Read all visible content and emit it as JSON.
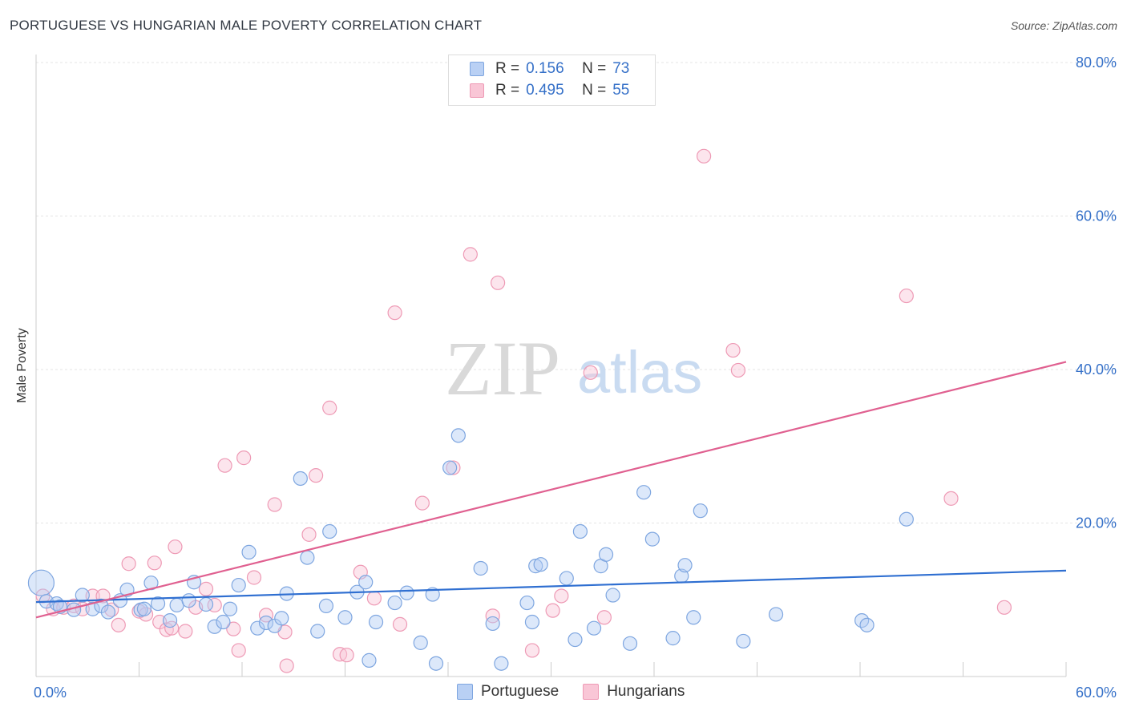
{
  "title": "PORTUGUESE VS HUNGARIAN MALE POVERTY CORRELATION CHART",
  "source": "Source: ZipAtlas.com",
  "watermark": {
    "zip": "ZIP",
    "atlas": "atlas"
  },
  "legend_top": [
    {
      "r_label": "R =",
      "r_value": "0.156",
      "n_label": "N =",
      "n_value": "73"
    },
    {
      "r_label": "R =",
      "r_value": "0.495",
      "n_label": "N =",
      "n_value": "55"
    }
  ],
  "legend_bottom": [
    "Portuguese",
    "Hungarians"
  ],
  "colors": {
    "portuguese": "#3b78d8",
    "hungarians": "#e46d98",
    "axis_text": "#3570c8"
  },
  "chart_data": {
    "type": "scatter",
    "title": "PORTUGUESE VS HUNGARIAN MALE POVERTY CORRELATION CHART",
    "xlabel": "",
    "ylabel": "Male Poverty",
    "xlim": [
      0,
      60
    ],
    "ylim": [
      0,
      80
    ],
    "x_tick_labels": [
      "0.0%",
      "60.0%"
    ],
    "y_tick_labels": [
      "20.0%",
      "40.0%",
      "60.0%",
      "80.0%"
    ],
    "y_ticks": [
      20,
      40,
      60,
      80
    ],
    "grid": true,
    "legend": "top-center",
    "series": [
      {
        "name": "Portuguese",
        "color": "#3b78d8",
        "trend": [
          [
            0,
            9.7
          ],
          [
            60,
            13.8
          ]
        ],
        "points": [
          [
            0.3,
            12.2
          ],
          [
            0.6,
            9.8
          ],
          [
            1.2,
            9.5
          ],
          [
            1.4,
            9.1
          ],
          [
            2.2,
            8.7
          ],
          [
            2.7,
            10.6
          ],
          [
            3.3,
            8.8
          ],
          [
            3.8,
            9.2
          ],
          [
            4.2,
            8.4
          ],
          [
            4.9,
            9.9
          ],
          [
            5.3,
            11.3
          ],
          [
            6.1,
            8.7
          ],
          [
            6.3,
            8.8
          ],
          [
            6.7,
            12.2
          ],
          [
            7.1,
            9.5
          ],
          [
            7.8,
            7.3
          ],
          [
            8.2,
            9.3
          ],
          [
            8.9,
            9.9
          ],
          [
            9.2,
            12.3
          ],
          [
            9.9,
            9.4
          ],
          [
            10.4,
            6.5
          ],
          [
            10.9,
            7.1
          ],
          [
            11.3,
            8.8
          ],
          [
            11.8,
            11.9
          ],
          [
            12.4,
            16.2
          ],
          [
            12.9,
            6.3
          ],
          [
            13.4,
            7.0
          ],
          [
            13.9,
            6.6
          ],
          [
            14.3,
            7.6
          ],
          [
            14.6,
            10.8
          ],
          [
            15.4,
            25.8
          ],
          [
            15.8,
            15.5
          ],
          [
            16.4,
            5.9
          ],
          [
            16.9,
            9.2
          ],
          [
            17.1,
            18.9
          ],
          [
            18.0,
            7.7
          ],
          [
            18.7,
            11.0
          ],
          [
            19.2,
            12.3
          ],
          [
            19.4,
            2.1
          ],
          [
            19.8,
            7.1
          ],
          [
            20.9,
            9.6
          ],
          [
            21.6,
            10.9
          ],
          [
            22.4,
            4.4
          ],
          [
            23.1,
            10.7
          ],
          [
            23.3,
            1.7
          ],
          [
            24.1,
            27.2
          ],
          [
            24.6,
            31.4
          ],
          [
            25.9,
            14.1
          ],
          [
            26.6,
            6.9
          ],
          [
            27.1,
            1.7
          ],
          [
            28.6,
            9.6
          ],
          [
            28.9,
            7.1
          ],
          [
            29.1,
            14.4
          ],
          [
            29.4,
            14.6
          ],
          [
            30.9,
            12.8
          ],
          [
            31.4,
            4.8
          ],
          [
            31.7,
            18.9
          ],
          [
            32.5,
            6.3
          ],
          [
            32.9,
            14.4
          ],
          [
            33.2,
            15.9
          ],
          [
            33.6,
            10.6
          ],
          [
            34.6,
            4.3
          ],
          [
            35.4,
            24.0
          ],
          [
            35.9,
            17.9
          ],
          [
            37.1,
            5.0
          ],
          [
            37.6,
            13.1
          ],
          [
            37.8,
            14.5
          ],
          [
            38.3,
            7.7
          ],
          [
            38.7,
            21.6
          ],
          [
            41.2,
            4.6
          ],
          [
            43.1,
            8.1
          ],
          [
            48.1,
            7.3
          ],
          [
            48.4,
            6.7
          ],
          [
            50.7,
            20.5
          ]
        ]
      },
      {
        "name": "Hungarians",
        "color": "#e46d98",
        "trend": [
          [
            0,
            7.7
          ],
          [
            60,
            41.0
          ]
        ],
        "points": [
          [
            0.4,
            10.5
          ],
          [
            1.0,
            8.8
          ],
          [
            1.6,
            9.0
          ],
          [
            2.2,
            9.2
          ],
          [
            2.7,
            8.8
          ],
          [
            3.3,
            10.5
          ],
          [
            3.9,
            10.5
          ],
          [
            4.4,
            8.7
          ],
          [
            4.8,
            6.7
          ],
          [
            5.4,
            14.7
          ],
          [
            6.0,
            8.5
          ],
          [
            6.4,
            8.1
          ],
          [
            6.9,
            14.8
          ],
          [
            7.2,
            7.1
          ],
          [
            7.6,
            6.1
          ],
          [
            7.9,
            6.3
          ],
          [
            8.1,
            16.9
          ],
          [
            8.7,
            5.9
          ],
          [
            9.3,
            9.0
          ],
          [
            9.9,
            11.4
          ],
          [
            10.4,
            9.3
          ],
          [
            11.0,
            27.5
          ],
          [
            11.5,
            6.2
          ],
          [
            11.8,
            3.4
          ],
          [
            12.1,
            28.5
          ],
          [
            12.7,
            12.9
          ],
          [
            13.4,
            8.0
          ],
          [
            13.9,
            22.4
          ],
          [
            14.5,
            5.8
          ],
          [
            14.6,
            1.4
          ],
          [
            15.9,
            18.5
          ],
          [
            16.3,
            26.2
          ],
          [
            17.1,
            35.0
          ],
          [
            17.7,
            2.9
          ],
          [
            18.1,
            2.8
          ],
          [
            18.9,
            13.6
          ],
          [
            19.7,
            10.2
          ],
          [
            20.9,
            47.4
          ],
          [
            21.2,
            6.8
          ],
          [
            22.5,
            22.6
          ],
          [
            24.3,
            27.2
          ],
          [
            25.3,
            55.0
          ],
          [
            26.6,
            7.9
          ],
          [
            26.9,
            51.3
          ],
          [
            28.9,
            3.4
          ],
          [
            30.1,
            8.6
          ],
          [
            30.6,
            10.5
          ],
          [
            32.3,
            39.6
          ],
          [
            33.1,
            7.7
          ],
          [
            38.9,
            67.8
          ],
          [
            40.6,
            42.5
          ],
          [
            40.9,
            39.9
          ],
          [
            50.7,
            49.6
          ],
          [
            53.3,
            23.2
          ],
          [
            56.4,
            9.0
          ]
        ]
      }
    ]
  }
}
